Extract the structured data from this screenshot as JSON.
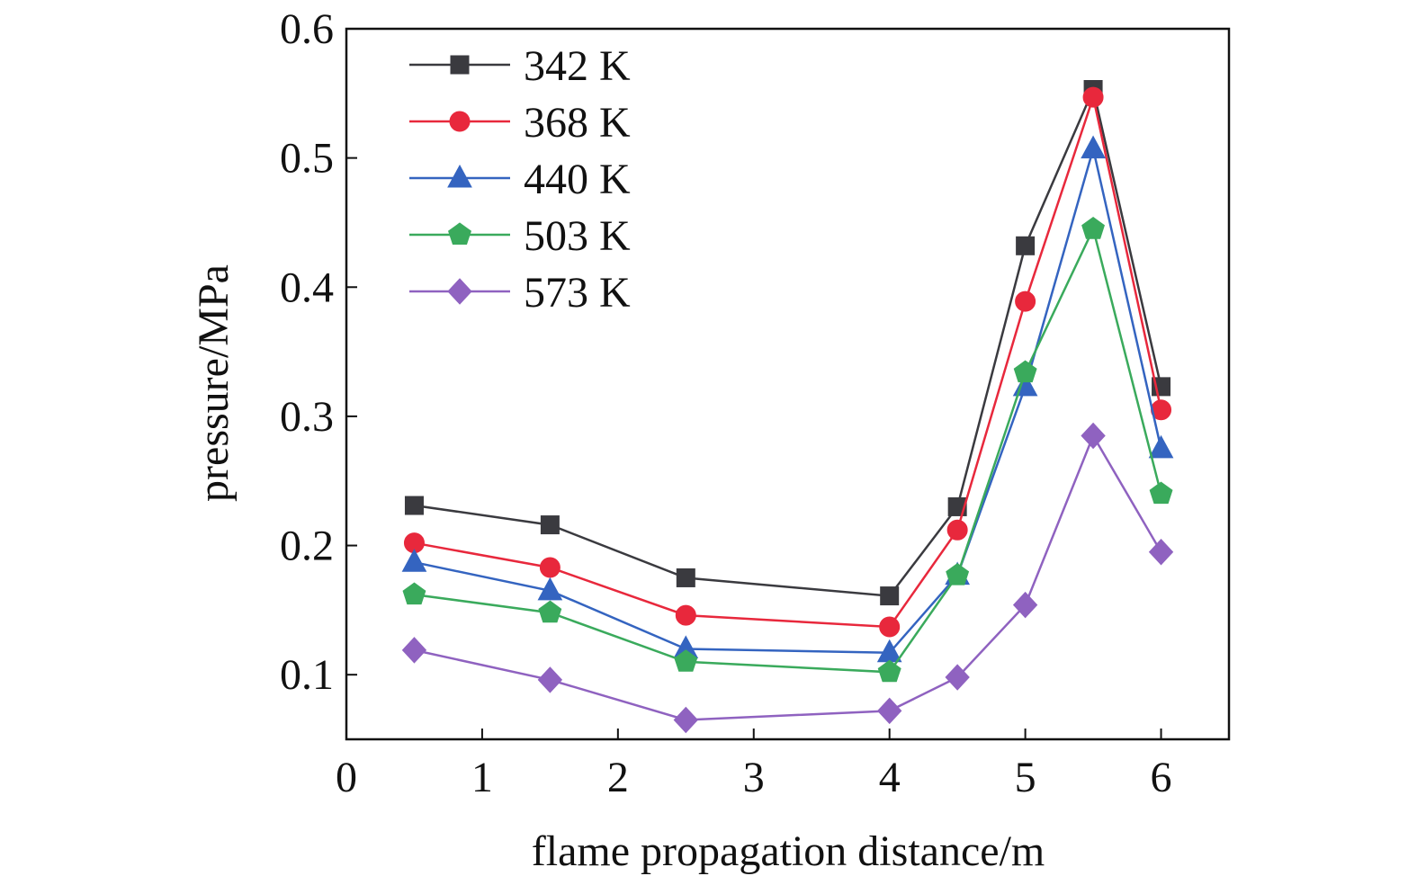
{
  "chart_data": {
    "type": "line",
    "xlabel": "flame propagation distance/m",
    "ylabel": "pressure/MPa",
    "xlim": [
      0,
      6.5
    ],
    "ylim": [
      0.05,
      0.6
    ],
    "xticks": [
      0,
      1,
      2,
      3,
      4,
      5,
      6
    ],
    "yticks": [
      0.1,
      0.2,
      0.3,
      0.4,
      0.5,
      0.6
    ],
    "grid": false,
    "legend": "top-left",
    "x": [
      0.5,
      1.5,
      2.5,
      4,
      4.5,
      5,
      5.5,
      6
    ],
    "series": [
      {
        "name": "342 K",
        "color": "#3a3a3f",
        "marker": "square",
        "values": [
          0.231,
          0.216,
          0.175,
          0.161,
          0.23,
          0.432,
          0.553,
          0.323
        ]
      },
      {
        "name": "368 K",
        "color": "#e8283c",
        "marker": "circle",
        "values": [
          0.202,
          0.183,
          0.146,
          0.137,
          0.212,
          0.389,
          0.547,
          0.305
        ]
      },
      {
        "name": "440 K",
        "color": "#3464c0",
        "marker": "triangle",
        "values": [
          0.187,
          0.165,
          0.12,
          0.117,
          0.177,
          0.323,
          0.507,
          0.275
        ]
      },
      {
        "name": "503 K",
        "color": "#3aaa5c",
        "marker": "pentagon",
        "values": [
          0.162,
          0.148,
          0.11,
          0.102,
          0.177,
          0.334,
          0.445,
          0.24
        ]
      },
      {
        "name": "573 K",
        "color": "#8f62c0",
        "marker": "diamond",
        "values": [
          0.119,
          0.096,
          0.065,
          0.072,
          0.098,
          0.154,
          0.285,
          0.195
        ]
      }
    ]
  }
}
